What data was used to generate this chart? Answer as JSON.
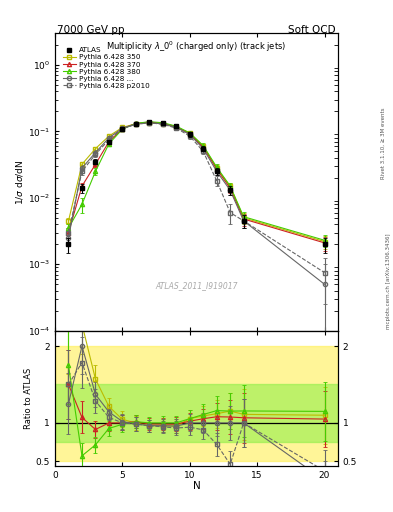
{
  "title_main": "Multiplicity $\\lambda\\_0^0$ (charged only) (track jets)",
  "top_left_label": "7000 GeV pp",
  "top_right_label": "Soft QCD",
  "ylabel_main": "1/$\\sigma$ d$\\sigma$/dN",
  "ylabel_ratio": "Ratio to ATLAS",
  "xlabel": "N",
  "watermark": "ATLAS_2011_I919017",
  "right_label1": "Rivet 3.1.10, ≥ 3M events",
  "right_label2": "mcplots.cern.ch [arXiv:1306.3436]",
  "atlas_x": [
    1,
    2,
    3,
    4,
    5,
    6,
    7,
    8,
    9,
    10,
    11,
    12,
    13,
    14,
    20
  ],
  "atlas_y": [
    0.002,
    0.014,
    0.035,
    0.07,
    0.11,
    0.13,
    0.14,
    0.135,
    0.12,
    0.09,
    0.055,
    0.025,
    0.013,
    0.0045,
    0.002
  ],
  "atlas_yerr": [
    0.0005,
    0.002,
    0.003,
    0.005,
    0.008,
    0.008,
    0.008,
    0.008,
    0.008,
    0.007,
    0.005,
    0.003,
    0.002,
    0.001,
    0.0005
  ],
  "py350_x": [
    1,
    2,
    3,
    4,
    5,
    6,
    7,
    8,
    9,
    10,
    11,
    12,
    13,
    14,
    20
  ],
  "py350_y": [
    0.0045,
    0.032,
    0.055,
    0.085,
    0.115,
    0.13,
    0.135,
    0.13,
    0.115,
    0.095,
    0.06,
    0.028,
    0.015,
    0.005,
    0.0022
  ],
  "py350_yerr": [
    0.0005,
    0.003,
    0.004,
    0.005,
    0.008,
    0.008,
    0.008,
    0.008,
    0.008,
    0.007,
    0.005,
    0.003,
    0.002,
    0.001,
    0.0005
  ],
  "py370_x": [
    1,
    2,
    3,
    4,
    5,
    6,
    7,
    8,
    9,
    10,
    11,
    12,
    13,
    14,
    20
  ],
  "py370_y": [
    0.003,
    0.015,
    0.032,
    0.07,
    0.11,
    0.132,
    0.138,
    0.133,
    0.118,
    0.092,
    0.058,
    0.027,
    0.014,
    0.0048,
    0.0021
  ],
  "py370_yerr": [
    0.0005,
    0.002,
    0.003,
    0.005,
    0.007,
    0.008,
    0.008,
    0.008,
    0.008,
    0.007,
    0.005,
    0.003,
    0.002,
    0.001,
    0.0005
  ],
  "py380_x": [
    1,
    2,
    3,
    4,
    5,
    6,
    7,
    8,
    9,
    10,
    11,
    12,
    13,
    14,
    20
  ],
  "py380_y": [
    0.0035,
    0.008,
    0.025,
    0.065,
    0.108,
    0.132,
    0.14,
    0.135,
    0.12,
    0.095,
    0.061,
    0.029,
    0.015,
    0.0052,
    0.0023
  ],
  "py380_yerr": [
    0.0005,
    0.002,
    0.003,
    0.005,
    0.007,
    0.008,
    0.008,
    0.008,
    0.008,
    0.007,
    0.005,
    0.003,
    0.002,
    0.001,
    0.0005
  ],
  "py_perugia_x": [
    1,
    2,
    3,
    4,
    5,
    6,
    7,
    8,
    9,
    10,
    11,
    12,
    13,
    14,
    20
  ],
  "py_perugia_y": [
    0.0025,
    0.028,
    0.048,
    0.08,
    0.112,
    0.128,
    0.135,
    0.13,
    0.115,
    0.09,
    0.055,
    0.025,
    0.013,
    0.0045,
    0.0005
  ],
  "py_perugia_yerr": [
    0.0005,
    0.003,
    0.004,
    0.005,
    0.007,
    0.008,
    0.008,
    0.008,
    0.008,
    0.007,
    0.005,
    0.003,
    0.002,
    0.001,
    0.0005
  ],
  "py_p2010_x": [
    1,
    2,
    3,
    4,
    5,
    6,
    7,
    8,
    9,
    10,
    11,
    12,
    13,
    14,
    20
  ],
  "py_p2010_y": [
    0.003,
    0.025,
    0.045,
    0.075,
    0.11,
    0.128,
    0.135,
    0.128,
    0.112,
    0.085,
    0.05,
    0.018,
    0.006,
    0.0045,
    0.00075
  ],
  "py_p2010_yerr": [
    0.0005,
    0.003,
    0.004,
    0.005,
    0.007,
    0.008,
    0.008,
    0.008,
    0.008,
    0.007,
    0.005,
    0.003,
    0.002,
    0.001,
    0.0005
  ],
  "color_atlas": "#000000",
  "color_py350": "#bbbb00",
  "color_py370": "#cc2222",
  "color_py380": "#44cc00",
  "color_perugia": "#666666",
  "color_p2010": "#666666",
  "ylim_main": [
    0.0001,
    3.0
  ],
  "ylim_ratio": [
    0.44,
    2.2
  ],
  "xlim": [
    0,
    21
  ],
  "xticks": [
    0,
    5,
    10,
    15,
    20
  ]
}
